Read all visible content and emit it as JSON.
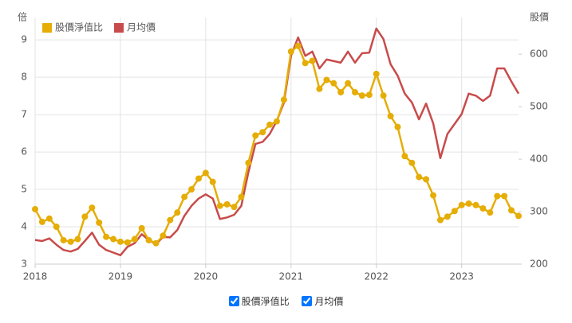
{
  "chart_data": {
    "type": "line",
    "y_label": "倍",
    "y2_label": "股價",
    "x": [
      2018,
      2018.083,
      2018.167,
      2018.25,
      2018.333,
      2018.417,
      2018.5,
      2018.583,
      2018.667,
      2018.75,
      2018.833,
      2018.917,
      2019,
      2019.083,
      2019.167,
      2019.25,
      2019.333,
      2019.417,
      2019.5,
      2019.583,
      2019.667,
      2019.75,
      2019.833,
      2019.917,
      2020,
      2020.083,
      2020.167,
      2020.25,
      2020.333,
      2020.417,
      2020.5,
      2020.583,
      2020.667,
      2020.75,
      2020.833,
      2020.917,
      2021,
      2021.083,
      2021.167,
      2021.25,
      2021.333,
      2021.417,
      2021.5,
      2021.583,
      2021.667,
      2021.75,
      2021.833,
      2021.917,
      2022,
      2022.083,
      2022.167,
      2022.25,
      2022.333,
      2022.417,
      2022.5,
      2022.583,
      2022.667,
      2022.75,
      2022.833,
      2022.917,
      2023,
      2023.083,
      2023.167,
      2023.25,
      2023.333,
      2023.417,
      2023.5,
      2023.583,
      2023.667
    ],
    "xlim": [
      2018,
      2023.667
    ],
    "xticks": [
      2018,
      2019,
      2020,
      2021,
      2022,
      2023
    ],
    "ylim": [
      3,
      9.6
    ],
    "yticks": [
      3,
      4,
      5,
      6,
      7,
      8,
      9
    ],
    "y2lim": [
      200,
      670
    ],
    "y2ticks": [
      200,
      300,
      400,
      500,
      600
    ],
    "grid": true,
    "legend": "top-left",
    "series": [
      {
        "name": "股價淨值比",
        "color": "#e5ad06",
        "markers": true,
        "values": [
          4.47,
          4.13,
          4.22,
          4.0,
          3.64,
          3.6,
          3.67,
          4.27,
          4.51,
          4.11,
          3.73,
          3.67,
          3.6,
          3.58,
          3.67,
          3.96,
          3.64,
          3.56,
          3.76,
          4.18,
          4.38,
          4.8,
          5.0,
          5.29,
          5.44,
          5.2,
          4.56,
          4.6,
          4.53,
          4.8,
          5.71,
          6.44,
          6.53,
          6.73,
          6.82,
          7.4,
          8.69,
          8.84,
          8.38,
          8.44,
          7.69,
          7.93,
          7.84,
          7.6,
          7.84,
          7.6,
          7.51,
          7.53,
          8.09,
          7.51,
          6.96,
          6.67,
          5.89,
          5.71,
          5.33,
          5.27,
          4.84,
          4.18,
          4.27,
          4.42,
          4.58,
          4.62,
          4.58,
          4.49,
          4.38,
          4.82,
          4.82,
          4.44,
          4.29
        ]
      },
      {
        "name": "月均價",
        "color": "#c84b4b",
        "markers": false,
        "axis": "y2",
        "values": [
          246,
          244,
          249,
          237,
          227,
          224,
          229,
          244,
          260,
          237,
          227,
          222,
          217,
          233,
          240,
          257,
          246,
          238,
          252,
          251,
          265,
          292,
          311,
          325,
          333,
          325,
          286,
          289,
          294,
          311,
          375,
          429,
          433,
          448,
          473,
          508,
          597,
          632,
          597,
          605,
          573,
          590,
          587,
          584,
          605,
          584,
          602,
          603,
          649,
          629,
          581,
          559,
          525,
          508,
          476,
          506,
          468,
          402,
          448,
          467,
          486,
          525,
          521,
          511,
          521,
          573,
          573,
          548,
          525
        ]
      }
    ]
  }
}
